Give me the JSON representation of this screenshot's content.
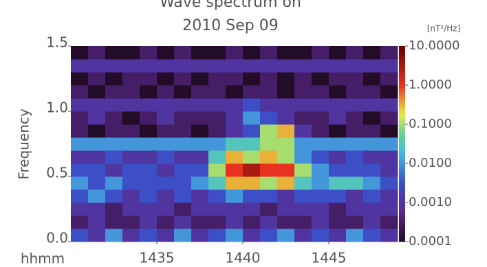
{
  "chart_data": {
    "type": "heatmap",
    "title": [
      "Wave spectrum on",
      "2010 Sep 09"
    ],
    "ylabel": "Frequency",
    "xlabel": "hhmm",
    "colorbar_label": "[nT²/Hz]",
    "xlim": [
      1430,
      1449
    ],
    "xticks": [
      1435,
      1440,
      1445
    ],
    "ylim": [
      0,
      1.5
    ],
    "yticks": [
      {
        "value": 0,
        "label": "0.0"
      },
      0.5,
      {
        "value": 1,
        "label": "1.0"
      },
      1.5
    ],
    "clim": [
      0.0001,
      10
    ],
    "log_color": true,
    "cticks": [
      {
        "value": 10,
        "label": "10.0000"
      },
      {
        "value": 1,
        "label": "1.0000"
      },
      {
        "value": 0.1,
        "label": "0.1000"
      },
      {
        "value": 0.01,
        "label": "0.0100"
      },
      {
        "value": 0.001,
        "label": "0.0010"
      },
      {
        "value": 0.0001,
        "label": "0.0001"
      }
    ],
    "xbins": [
      1430,
      1431,
      1432,
      1433,
      1434,
      1435,
      1436,
      1437,
      1438,
      1439,
      1440,
      1441,
      1442,
      1443,
      1444,
      1445,
      1446,
      1447,
      1448,
      1449
    ],
    "ybins": [
      0,
      0.1,
      0.2,
      0.3,
      0.4,
      0.5,
      0.6,
      0.7,
      0.8,
      0.9,
      1.0,
      1.1,
      1.2,
      1.3,
      1.4,
      1.5
    ],
    "z": [
      [
        0.003,
        0.001,
        0.01,
        0.001,
        0.003,
        0.001,
        0.01,
        0.001,
        0.003,
        0.01,
        0.001,
        0.003,
        0.01,
        0.001,
        0.003,
        0.001,
        0.01,
        0.003,
        0.001
      ],
      [
        0.0003,
        0.001,
        0.0003,
        0.0003,
        0.001,
        0.0003,
        0.001,
        0.0003,
        0.0003,
        0.001,
        0.0003,
        0.001,
        0.0003,
        0.0003,
        0.001,
        0.0003,
        0.0003,
        0.001,
        0.0003
      ],
      [
        0.001,
        0.001,
        0.0003,
        0.001,
        0.001,
        0.001,
        0.0003,
        0.001,
        0.001,
        0.001,
        0.001,
        0.0003,
        0.001,
        0.001,
        0.001,
        0.0003,
        0.001,
        0.001,
        0.001
      ],
      [
        0.003,
        0.01,
        0.003,
        0.001,
        0.003,
        0.001,
        0.003,
        0.001,
        0.003,
        0.01,
        0.003,
        0.003,
        0.001,
        0.003,
        0.003,
        0.003,
        0.001,
        0.003,
        0.001
      ],
      [
        0.01,
        0.003,
        0.01,
        0.003,
        0.003,
        0.003,
        0.003,
        0.01,
        0.03,
        0.3,
        0.3,
        0.1,
        0.3,
        0.03,
        0.01,
        0.03,
        0.03,
        0.01,
        0.003
      ],
      [
        0.003,
        0.003,
        0.001,
        0.003,
        0.003,
        0.001,
        0.003,
        0.003,
        0.1,
        1,
        3,
        1,
        1,
        0.1,
        0.01,
        0.003,
        0.003,
        0.003,
        0.001
      ],
      [
        0.001,
        0.001,
        0.003,
        0.001,
        0.001,
        0.003,
        0.001,
        0.001,
        0.03,
        0.3,
        0.1,
        0.3,
        0.1,
        0.01,
        0.003,
        0.001,
        0.003,
        0.001,
        0.001
      ],
      [
        0.01,
        0.01,
        0.01,
        0.01,
        0.01,
        0.01,
        0.01,
        0.01,
        0.01,
        0.03,
        0.03,
        0.1,
        0.1,
        0.01,
        0.01,
        0.01,
        0.01,
        0.01,
        0.01
      ],
      [
        0.0003,
        0.0001,
        0.0003,
        0.0003,
        0.0001,
        0.0003,
        0.0003,
        0.0001,
        0.0003,
        0.001,
        0.003,
        0.1,
        0.3,
        0.001,
        0.0003,
        0.0001,
        0.0003,
        0.0003,
        0.0001
      ],
      [
        0.0003,
        0.001,
        0.0003,
        0.0001,
        0.0003,
        0.001,
        0.0003,
        0.0003,
        0.0003,
        0.001,
        0.01,
        0.003,
        0.001,
        0.0003,
        0.0003,
        0.001,
        0.0003,
        0.0001,
        0.0003
      ],
      [
        0.001,
        0.001,
        0.001,
        0.001,
        0.001,
        0.001,
        0.001,
        0.001,
        0.001,
        0.001,
        0.003,
        0.001,
        0.001,
        0.001,
        0.001,
        0.001,
        0.001,
        0.001,
        0.001
      ],
      [
        0.0003,
        0.0001,
        0.0003,
        0.0003,
        0.0001,
        0.0003,
        0.0001,
        0.0003,
        0.0003,
        0.0001,
        0.0003,
        0.0003,
        0.0001,
        0.0003,
        0.0003,
        0.0001,
        0.0003,
        0.0003,
        0.0001
      ],
      [
        0.0001,
        0.0003,
        0.0001,
        0.0003,
        0.0003,
        0.0001,
        0.0003,
        0.0001,
        0.0003,
        0.0003,
        0.0001,
        0.0003,
        0.0001,
        0.0003,
        0.0001,
        0.0003,
        0.0003,
        0.0001,
        0.0003
      ],
      [
        0.001,
        0.001,
        0.001,
        0.001,
        0.001,
        0.001,
        0.001,
        0.001,
        0.001,
        0.001,
        0.001,
        0.001,
        0.001,
        0.001,
        0.001,
        0.001,
        0.001,
        0.001,
        0.001
      ],
      [
        0.0001,
        0.0003,
        0.0001,
        0.0001,
        0.0003,
        0.0001,
        0.0003,
        0.0001,
        0.0001,
        0.0003,
        0.0001,
        0.0003,
        0.0001,
        0.0001,
        0.0003,
        0.0001,
        0.0003,
        0.0001,
        0.0003
      ]
    ]
  }
}
